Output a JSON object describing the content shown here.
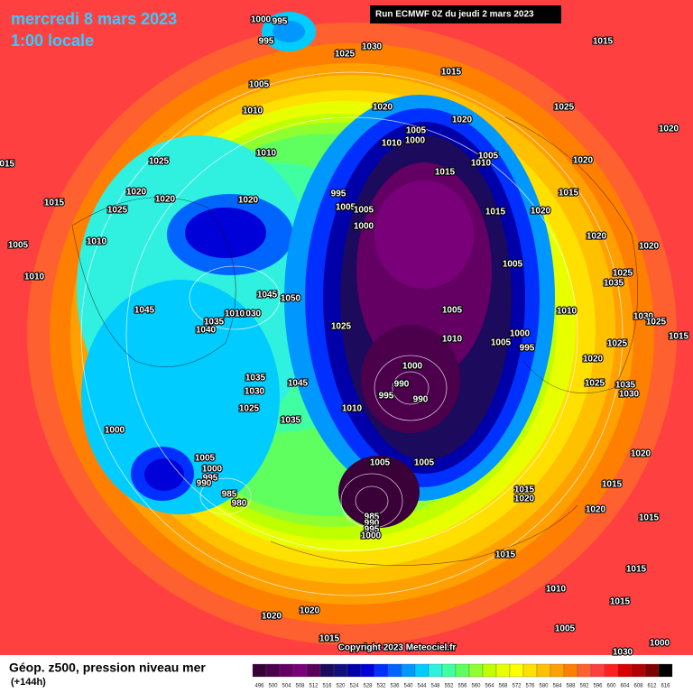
{
  "header": {
    "date": "mercredi 8 mars 2023",
    "time": "1:00 locale",
    "run": "Run ECMWF 0Z du jeudi 2 mars 2023"
  },
  "footer": {
    "title": "Géop. z500, pression niveau mer",
    "lead": "(+144h)",
    "copyright": "Copyright 2023 Meteociel.fr"
  },
  "legend": {
    "levels": [
      496,
      500,
      504,
      508,
      512,
      516,
      520,
      524,
      528,
      532,
      536,
      540,
      544,
      548,
      552,
      556,
      560,
      564,
      568,
      572,
      576,
      580,
      584,
      588,
      592,
      596,
      600,
      604,
      608,
      612,
      616
    ],
    "colors": [
      "#3a0038",
      "#4c004c",
      "#640064",
      "#7a007a",
      "#5a005a",
      "#1c0a5c",
      "#10107c",
      "#0000a8",
      "#0000d8",
      "#0030ff",
      "#0064ff",
      "#0098ff",
      "#00ccff",
      "#30f0e0",
      "#40ffa0",
      "#60ff60",
      "#90ff30",
      "#c0ff00",
      "#e8ff00",
      "#ffff00",
      "#ffe000",
      "#ffc000",
      "#ffa000",
      "#ff8000",
      "#ff6030",
      "#ff4040",
      "#ff2020",
      "#d80000",
      "#b00000",
      "#800000",
      "#000000"
    ]
  },
  "isobar_labels": [
    1000,
    995,
    995,
    1030,
    1025,
    1015,
    1015,
    1005,
    1010,
    1020,
    1020,
    1025,
    1020,
    1005,
    1000,
    1010,
    1005,
    1010,
    1015,
    1010,
    1025,
    1020,
    1015,
    1020,
    1020,
    1020,
    1015,
    1025,
    995,
    1005,
    1005,
    1000,
    1015,
    1020,
    1015,
    1020,
    1020,
    1005,
    1010,
    1005,
    1025,
    1035,
    1010,
    1045,
    1050,
    1045,
    1035,
    1030,
    1010,
    1040,
    1025,
    1005,
    1010,
    1005,
    1000,
    995,
    1010,
    1030,
    1025,
    1025,
    1020,
    1015,
    1000,
    990,
    995,
    990,
    1035,
    1030,
    1025,
    1045,
    1010,
    1035,
    1025,
    1035,
    1030,
    1000,
    1005,
    1000,
    995,
    990,
    985,
    980,
    1005,
    1005,
    1020,
    1015,
    1015,
    1020,
    1020,
    1015,
    985,
    990,
    995,
    1000,
    1015,
    1015,
    1010,
    1015,
    1020,
    1020,
    1015,
    1005,
    1030,
    1000
  ]
}
